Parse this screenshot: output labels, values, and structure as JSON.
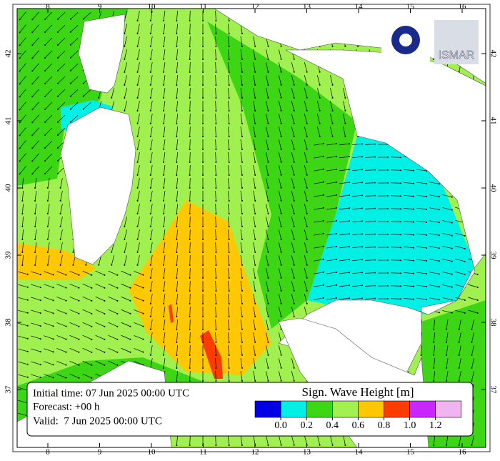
{
  "map": {
    "lon_labels": [
      8,
      9,
      10,
      11,
      12,
      13,
      14,
      15,
      16
    ],
    "lat_labels": [
      42,
      41,
      40,
      39,
      38,
      37
    ],
    "info": {
      "initial": "Initial time: 07 Jun 2025 00:00 UTC",
      "forecast": "Forecast: +00 h",
      "valid": "Valid:  7 Jun 2025 00:00 UTC"
    },
    "legend": {
      "title": "Sign. Wave Height [m]",
      "colors": [
        "#0000e6",
        "#00f0e6",
        "#3cd614",
        "#a0f050",
        "#ffc800",
        "#ff3c00",
        "#c828ff",
        "#f0b4f0"
      ],
      "ticks": [
        {
          "value": 0,
          "label": "0.0"
        },
        {
          "value": 0.2,
          "label": "0.2"
        },
        {
          "value": 0.4,
          "label": "0.4"
        },
        {
          "value": 0.6,
          "label": "0.6"
        },
        {
          "value": 0.8,
          "label": "0.8"
        },
        {
          "value": 1,
          "label": "1.0"
        },
        {
          "value": 1.2,
          "label": "1.2"
        }
      ]
    },
    "logo": "ISMAR"
  }
}
